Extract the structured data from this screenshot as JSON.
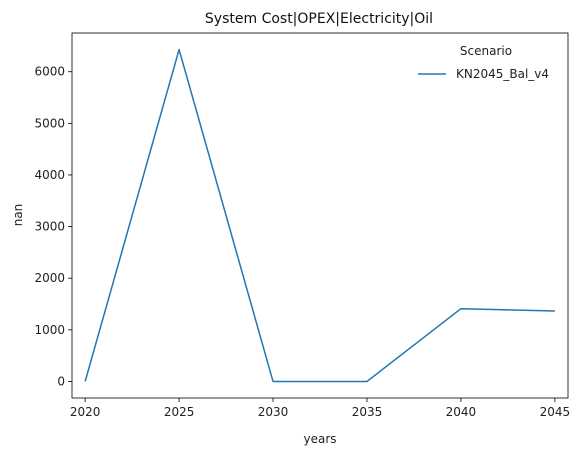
{
  "chart_data": {
    "type": "line",
    "title": "System Cost|OPEX|Electricity|Oil",
    "xlabel": "years",
    "ylabel": "nan",
    "x": [
      2020,
      2025,
      2030,
      2035,
      2040,
      2045
    ],
    "xlim": [
      2019.3,
      2045.7
    ],
    "ylim": [
      -320,
      6750
    ],
    "xticks": [
      2020,
      2025,
      2030,
      2035,
      2040,
      2045
    ],
    "yticks": [
      0,
      1000,
      2000,
      3000,
      4000,
      5000,
      6000
    ],
    "grid": false,
    "legend": {
      "title": "Scenario",
      "placement": "top-right"
    },
    "series": [
      {
        "name": "KN2045_Bal_v4",
        "color": "#1f77b4",
        "values": [
          0,
          6430,
          0,
          0,
          1410,
          1365
        ]
      }
    ]
  }
}
